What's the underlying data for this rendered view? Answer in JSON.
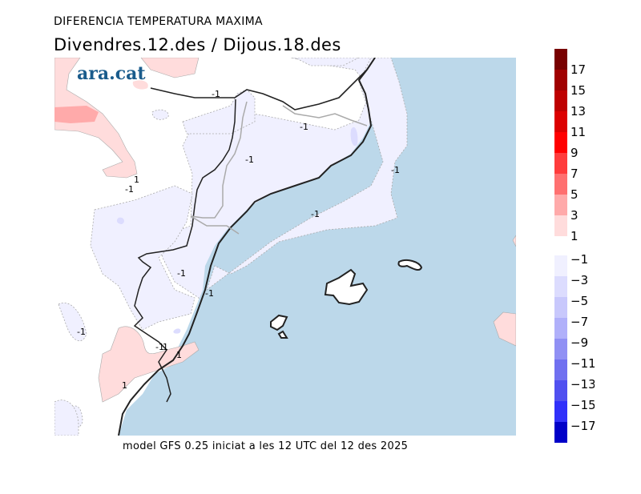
{
  "header": {
    "title": "DIFERENCIA TEMPERATURA MAXIMA",
    "subtitle": "Divendres.12.des / Dijous.18.des"
  },
  "footer": {
    "caption": "model GFS 0.25 iniciat a les 12 UTC del 12 des 2025"
  },
  "logo": {
    "text": "ara.cat",
    "color": "#1a5c8c"
  },
  "chart_data": {
    "type": "heatmap",
    "title": "DIFERENCIA TEMPERATURA MAXIMA",
    "subtitle": "Divendres.12.des / Dijous.18.des",
    "xlabel": "",
    "ylabel": "",
    "colors": {
      "sea": "#bcd8ea",
      "land_neutral": "#ffffff",
      "coast": "#222222",
      "border": "#aaaaaa"
    },
    "contour_labels": [
      "-1",
      "-1",
      "-1",
      "-1",
      "-1",
      "-1",
      "-1",
      "-1",
      "-1",
      "1",
      "1",
      "1",
      "1",
      "-1"
    ],
    "legend": {
      "position": "right",
      "positive": {
        "labels": [
          "17",
          "15",
          "13",
          "11",
          "9",
          "7",
          "5",
          "3",
          "1"
        ],
        "colors": [
          "#780000",
          "#a00000",
          "#be0000",
          "#dc0000",
          "#ff0000",
          "#ff3c3c",
          "#ff7070",
          "#ffaaaa",
          "#ffdcdc"
        ]
      },
      "negative": {
        "labels": [
          "-1",
          "-3",
          "-5",
          "-7",
          "-9",
          "-11",
          "-13",
          "-15",
          "-17"
        ],
        "colors": [
          "#f0f0ff",
          "#dcdcfe",
          "#c8c8fc",
          "#b0b0fa",
          "#9090f4",
          "#7070f0",
          "#5050f0",
          "#3030fa",
          "#0000c8"
        ]
      }
    }
  }
}
